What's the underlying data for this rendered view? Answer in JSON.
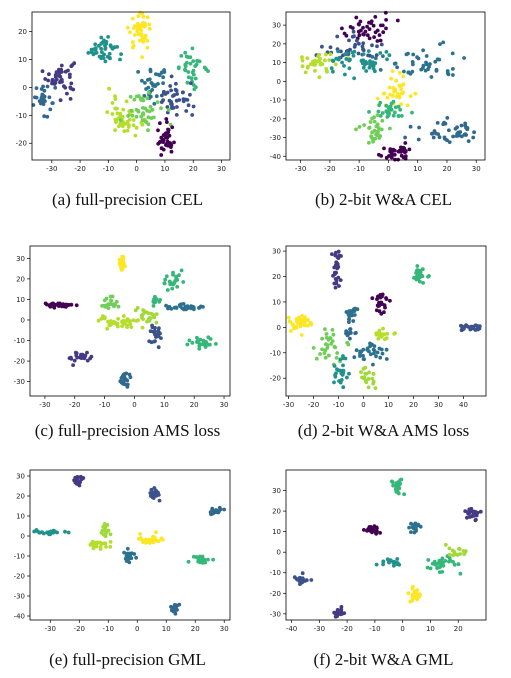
{
  "chart_data": [
    {
      "type": "scatter",
      "caption": "(a) full-precision CEL",
      "xlim": [
        -37,
        33
      ],
      "ylim": [
        -26,
        27
      ],
      "xticks": [
        -30,
        -20,
        -10,
        0,
        10,
        20,
        30
      ],
      "yticks": [
        -20,
        -10,
        0,
        10,
        20
      ],
      "clusters": [
        {
          "color": "#443a83",
          "cx": -27,
          "cy": 4,
          "sx": 2.5,
          "sy": 3,
          "n": 45
        },
        {
          "color": "#31688e",
          "cx": -33,
          "cy": -4,
          "sx": 2,
          "sy": 3,
          "n": 30
        },
        {
          "color": "#21918c",
          "cx": -12,
          "cy": 14,
          "sx": 2.5,
          "sy": 2.5,
          "n": 40
        },
        {
          "color": "#fde725",
          "cx": 1,
          "cy": 20,
          "sx": 2,
          "sy": 3,
          "n": 45
        },
        {
          "color": "#35b779",
          "cx": 20,
          "cy": 7,
          "sx": 2.5,
          "sy": 3,
          "n": 35
        },
        {
          "color": "#2c728e",
          "cx": 6,
          "cy": 1,
          "sx": 3,
          "sy": 3,
          "n": 35
        },
        {
          "color": "#3b528b",
          "cx": 14,
          "cy": -5,
          "sx": 3,
          "sy": 3,
          "n": 40
        },
        {
          "color": "#b5de2b",
          "cx": -4,
          "cy": -10,
          "sx": 3,
          "sy": 3.5,
          "n": 50
        },
        {
          "color": "#6ece58",
          "cx": 3,
          "cy": -8,
          "sx": 3,
          "sy": 3,
          "n": 40
        },
        {
          "color": "#440154",
          "cx": 10,
          "cy": -19,
          "sx": 1.5,
          "sy": 3,
          "n": 35
        }
      ]
    },
    {
      "type": "scatter",
      "caption": "(b) 2-bit W&A CEL",
      "xlim": [
        -35,
        33
      ],
      "ylim": [
        -42,
        37
      ],
      "xticks": [
        -30,
        -20,
        -10,
        0,
        10,
        20,
        30
      ],
      "yticks": [
        -40,
        -30,
        -20,
        -10,
        0,
        10,
        20,
        30
      ],
      "clusters": [
        {
          "color": "#440154",
          "cx": -7,
          "cy": 28,
          "sx": 4,
          "sy": 4,
          "n": 40
        },
        {
          "color": "#3b528b",
          "cx": -12,
          "cy": 18,
          "sx": 5,
          "sy": 4,
          "n": 35
        },
        {
          "color": "#b5de2b",
          "cx": -25,
          "cy": 10,
          "sx": 4,
          "sy": 3,
          "n": 35
        },
        {
          "color": "#21918c",
          "cx": -10,
          "cy": 10,
          "sx": 6,
          "sy": 4,
          "n": 45
        },
        {
          "color": "#2c728e",
          "cx": 10,
          "cy": 10,
          "sx": 7,
          "sy": 4,
          "n": 45
        },
        {
          "color": "#fde725",
          "cx": 3,
          "cy": -5,
          "sx": 3,
          "sy": 5,
          "n": 35
        },
        {
          "color": "#35b779",
          "cx": 0,
          "cy": -16,
          "sx": 3,
          "sy": 3,
          "n": 30
        },
        {
          "color": "#6ece58",
          "cx": -5,
          "cy": -26,
          "sx": 3,
          "sy": 4,
          "n": 30
        },
        {
          "color": "#31688e",
          "cx": 21,
          "cy": -27,
          "sx": 5,
          "sy": 3,
          "n": 45
        },
        {
          "color": "#440154",
          "cx": 3,
          "cy": -38,
          "sx": 3,
          "sy": 2,
          "n": 35
        }
      ]
    },
    {
      "type": "scatter",
      "caption": "(c) full-precision AMS loss",
      "xlim": [
        -35,
        32
      ],
      "ylim": [
        -37,
        36
      ],
      "xticks": [
        -30,
        -20,
        -10,
        0,
        10,
        20,
        30
      ],
      "yticks": [
        -30,
        -20,
        -10,
        0,
        10,
        20,
        30
      ],
      "clusters": [
        {
          "color": "#fde725",
          "cx": -4,
          "cy": 28,
          "sx": 0.7,
          "sy": 2,
          "n": 30
        },
        {
          "color": "#35b779",
          "cx": 13,
          "cy": 19,
          "sx": 1.5,
          "sy": 2,
          "n": 25
        },
        {
          "color": "#35b779",
          "cx": 7,
          "cy": 10,
          "sx": 1,
          "sy": 2,
          "n": 10
        },
        {
          "color": "#440154",
          "cx": -26,
          "cy": 7,
          "sx": 3,
          "sy": 0.6,
          "n": 35
        },
        {
          "color": "#6ece58",
          "cx": -8,
          "cy": 8,
          "sx": 1.2,
          "sy": 2,
          "n": 20
        },
        {
          "color": "#2c728e",
          "cx": 17,
          "cy": 6,
          "sx": 3,
          "sy": 0.7,
          "n": 30
        },
        {
          "color": "#b5de2b",
          "cx": -5,
          "cy": -1,
          "sx": 4,
          "sy": 1.5,
          "n": 40
        },
        {
          "color": "#a0da39",
          "cx": 4,
          "cy": 2,
          "sx": 2,
          "sy": 2,
          "n": 20
        },
        {
          "color": "#3b528b",
          "cx": 7,
          "cy": -8,
          "sx": 1.2,
          "sy": 3,
          "n": 25
        },
        {
          "color": "#35b779",
          "cx": 23,
          "cy": -11,
          "sx": 2,
          "sy": 1.3,
          "n": 25
        },
        {
          "color": "#443a83",
          "cx": -18,
          "cy": -18,
          "sx": 2.5,
          "sy": 1.2,
          "n": 25
        },
        {
          "color": "#31688e",
          "cx": -3,
          "cy": -29,
          "sx": 0.8,
          "sy": 2.2,
          "n": 25
        }
      ]
    },
    {
      "type": "scatter",
      "caption": "(d) 2-bit W&A AMS loss",
      "xlim": [
        -31,
        49
      ],
      "ylim": [
        -27,
        32
      ],
      "xticks": [
        -30,
        -20,
        -10,
        0,
        10,
        20,
        30,
        40
      ],
      "yticks": [
        -20,
        -10,
        0,
        10,
        20,
        30
      ],
      "clusters": [
        {
          "color": "#443a83",
          "cx": -11,
          "cy": 23,
          "sx": 1,
          "sy": 4,
          "n": 30
        },
        {
          "color": "#35b779",
          "cx": 22,
          "cy": 20,
          "sx": 1.5,
          "sy": 2,
          "n": 25
        },
        {
          "color": "#440154",
          "cx": 7,
          "cy": 9,
          "sx": 1.5,
          "sy": 2.5,
          "n": 25
        },
        {
          "color": "#2c728e",
          "cx": -5,
          "cy": 6,
          "sx": 1,
          "sy": 1.5,
          "n": 20
        },
        {
          "color": "#fde725",
          "cx": -25,
          "cy": 2,
          "sx": 2.5,
          "sy": 1.5,
          "n": 35
        },
        {
          "color": "#31688e",
          "cx": -5,
          "cy": -2,
          "sx": 1,
          "sy": 2,
          "n": 15
        },
        {
          "color": "#6ece58",
          "cx": -14,
          "cy": -8,
          "sx": 3,
          "sy": 3,
          "n": 30
        },
        {
          "color": "#b5de2b",
          "cx": 8,
          "cy": -3,
          "sx": 2,
          "sy": 1,
          "n": 20
        },
        {
          "color": "#2c728e",
          "cx": 2,
          "cy": -10,
          "sx": 3,
          "sy": 2,
          "n": 30
        },
        {
          "color": "#3b528b",
          "cx": 43,
          "cy": 0,
          "sx": 3,
          "sy": 0.8,
          "n": 30
        },
        {
          "color": "#21918c",
          "cx": -9,
          "cy": -17,
          "sx": 1.5,
          "sy": 3,
          "n": 25
        },
        {
          "color": "#a0da39",
          "cx": 2,
          "cy": -20,
          "sx": 1.5,
          "sy": 2,
          "n": 20
        }
      ]
    },
    {
      "type": "scatter",
      "caption": "(e) full-precision GML",
      "xlim": [
        -37,
        32
      ],
      "ylim": [
        -42,
        33
      ],
      "xticks": [
        -30,
        -20,
        -10,
        0,
        10,
        20,
        30
      ],
      "yticks": [
        -40,
        -30,
        -20,
        -10,
        0,
        10,
        20,
        30
      ],
      "clusters": [
        {
          "color": "#443a83",
          "cx": -20,
          "cy": 28,
          "sx": 0.8,
          "sy": 1.5,
          "n": 20
        },
        {
          "color": "#3b528b",
          "cx": 6,
          "cy": 22,
          "sx": 0.7,
          "sy": 2,
          "n": 20
        },
        {
          "color": "#31688e",
          "cx": 27,
          "cy": 12,
          "sx": 1.5,
          "sy": 0.8,
          "n": 20
        },
        {
          "color": "#21918c",
          "cx": -31,
          "cy": 2,
          "sx": 2.5,
          "sy": 0.6,
          "n": 25
        },
        {
          "color": "#a0da39",
          "cx": -11,
          "cy": 3,
          "sx": 0.8,
          "sy": 2,
          "n": 15
        },
        {
          "color": "#b5de2b",
          "cx": -14,
          "cy": -4,
          "sx": 2.5,
          "sy": 1.2,
          "n": 25
        },
        {
          "color": "#fde725",
          "cx": 5,
          "cy": -2,
          "sx": 3,
          "sy": 1.2,
          "n": 30
        },
        {
          "color": "#2c728e",
          "cx": -3,
          "cy": -10,
          "sx": 1,
          "sy": 2,
          "n": 20
        },
        {
          "color": "#35b779",
          "cx": 22,
          "cy": -12,
          "sx": 1.5,
          "sy": 1,
          "n": 20
        },
        {
          "color": "#31688e",
          "cx": 13,
          "cy": -36,
          "sx": 0.8,
          "sy": 1.5,
          "n": 20
        }
      ]
    },
    {
      "type": "scatter",
      "caption": "(f) 2-bit W&A GML",
      "xlim": [
        -42,
        30
      ],
      "ylim": [
        -33,
        40
      ],
      "xticks": [
        -40,
        -30,
        -20,
        -10,
        0,
        10,
        20
      ],
      "yticks": [
        -30,
        -20,
        -10,
        0,
        10,
        20,
        30
      ],
      "clusters": [
        {
          "color": "#35b779",
          "cx": -2,
          "cy": 32,
          "sx": 1,
          "sy": 2,
          "n": 25
        },
        {
          "color": "#443a83",
          "cx": 25,
          "cy": 19,
          "sx": 1.5,
          "sy": 1.5,
          "n": 25
        },
        {
          "color": "#2c728e",
          "cx": 4,
          "cy": 12,
          "sx": 1,
          "sy": 1.5,
          "n": 20
        },
        {
          "color": "#440154",
          "cx": -11,
          "cy": 11,
          "sx": 1.5,
          "sy": 1,
          "n": 25
        },
        {
          "color": "#21918c",
          "cx": -5,
          "cy": -5,
          "sx": 2,
          "sy": 1,
          "n": 20
        },
        {
          "color": "#35b779",
          "cx": 14,
          "cy": -6,
          "sx": 3,
          "sy": 2,
          "n": 30
        },
        {
          "color": "#a0da39",
          "cx": 20,
          "cy": 0,
          "sx": 2,
          "sy": 1,
          "n": 15
        },
        {
          "color": "#fde725",
          "cx": 4,
          "cy": -21,
          "sx": 1,
          "sy": 1.5,
          "n": 20
        },
        {
          "color": "#3b528b",
          "cx": -36,
          "cy": -13,
          "sx": 1.5,
          "sy": 1,
          "n": 20
        },
        {
          "color": "#443a83",
          "cx": -23,
          "cy": -29,
          "sx": 1,
          "sy": 1.5,
          "n": 20
        }
      ]
    }
  ]
}
